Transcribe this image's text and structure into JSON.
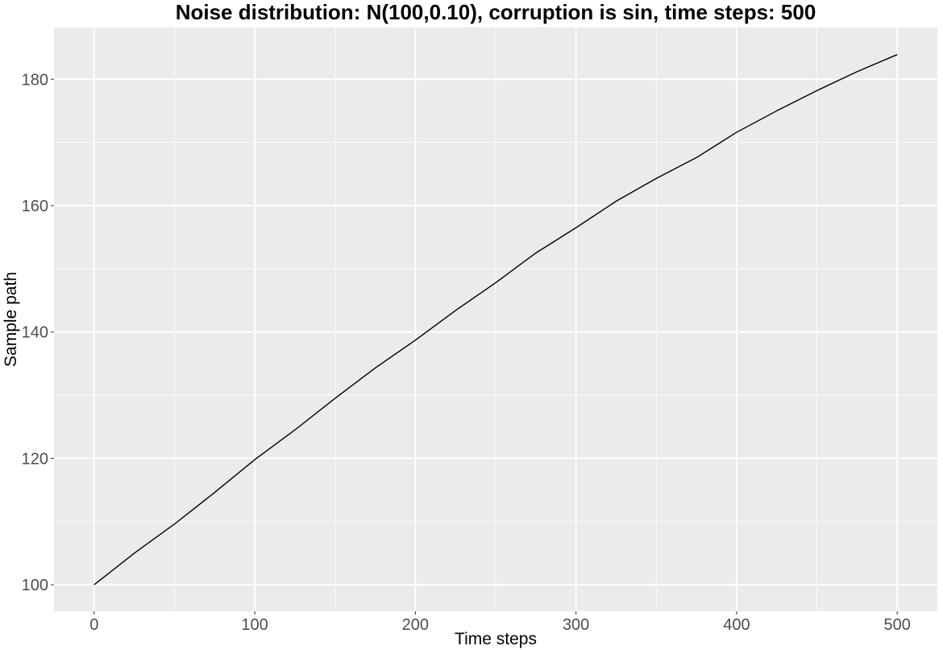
{
  "chart_data": {
    "type": "line",
    "title": "Noise distribution: N(100,0.10), corruption is sin, time steps: 500",
    "xlabel": "Time steps",
    "ylabel": "Sample path",
    "xlim": [
      -25,
      525
    ],
    "ylim": [
      95.8,
      188.2
    ],
    "x_ticks": [
      0,
      100,
      200,
      300,
      400,
      500
    ],
    "y_ticks": [
      100,
      120,
      140,
      160,
      180
    ],
    "x_minor_ticks": [
      50,
      150,
      250,
      350,
      450
    ],
    "y_minor_ticks": [
      110,
      130,
      150,
      170
    ],
    "grid": true,
    "colors": {
      "panel_background": "#ebebeb",
      "grid": "#ffffff",
      "line": "#000000",
      "tick_label": "#4d4d4d"
    },
    "series": [
      {
        "x": [
          0,
          25,
          50,
          75,
          100,
          125,
          150,
          175,
          200,
          225,
          250,
          275,
          300,
          325,
          350,
          375,
          400,
          425,
          450,
          475,
          500
        ],
        "y": [
          100.0,
          105.0,
          109.6,
          114.6,
          119.8,
          124.5,
          129.5,
          134.3,
          138.7,
          143.4,
          147.8,
          152.5,
          156.5,
          160.7,
          164.3,
          167.6,
          171.6,
          175.0,
          178.2,
          181.2,
          183.9
        ]
      }
    ]
  }
}
